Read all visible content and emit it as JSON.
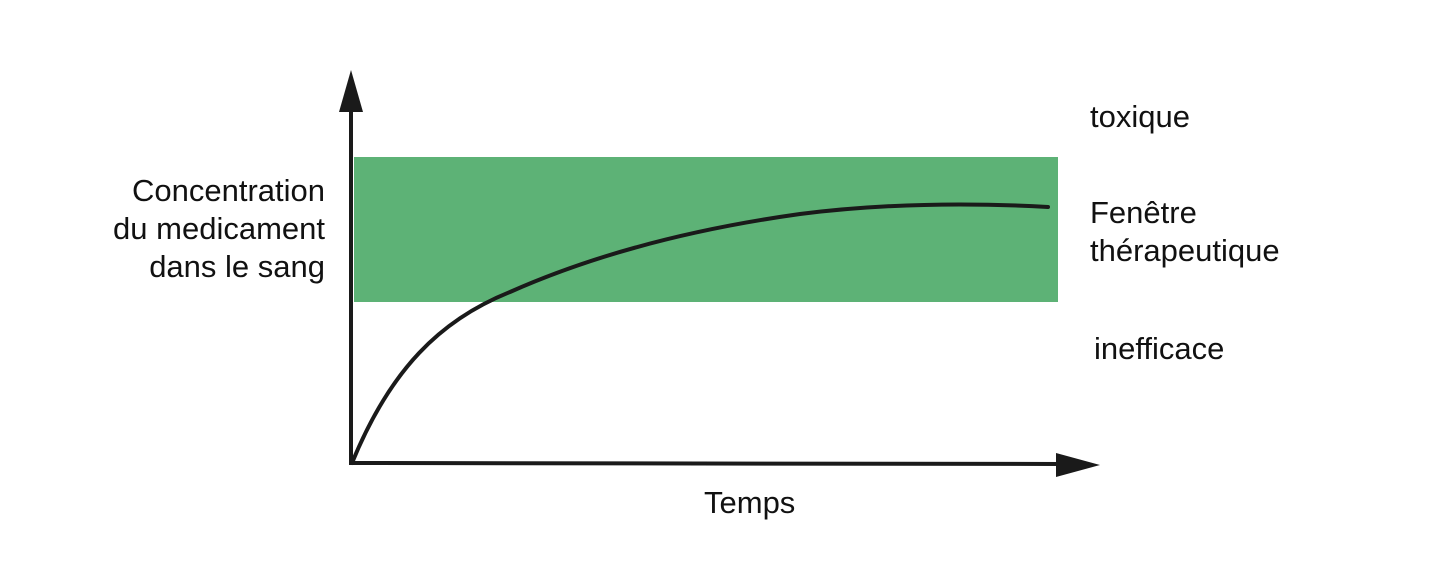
{
  "axes": {
    "y_label_lines": [
      "Concentration",
      "du medicament",
      "dans le sang"
    ],
    "x_label": "Temps"
  },
  "zones": {
    "above": "toxique",
    "window_lines": [
      "Fenêtre",
      "thérapeutique"
    ],
    "below": "inefficace"
  },
  "colors": {
    "therapeutic_band": "#5db276",
    "curve": "#1a1a1a",
    "axes": "#1a1a1a",
    "background": "#ffffff"
  }
}
